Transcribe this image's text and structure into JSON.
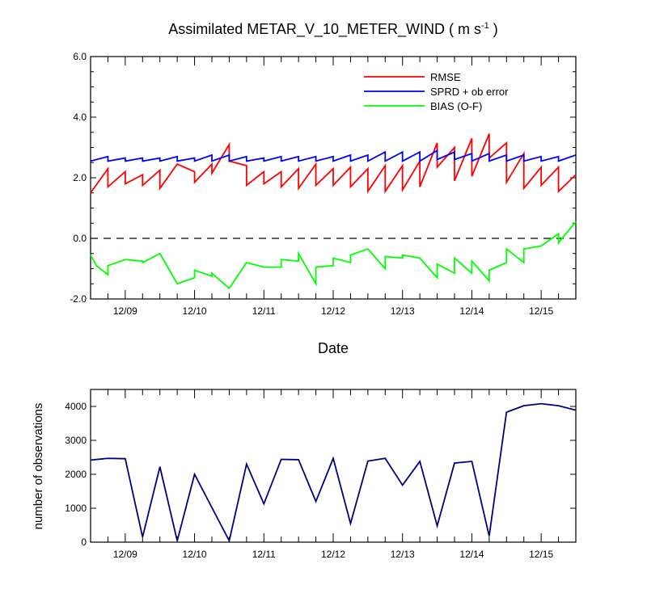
{
  "chart_data": [
    {
      "type": "line",
      "title": "Assimilated METAR_V_10_METER_WIND ( m s",
      "title_sup": "-1",
      "title_end": " )",
      "xlabel": "Date",
      "ylabel": "",
      "ylim": [
        -2.0,
        6.0
      ],
      "yticks": [
        "-2.0",
        "0.0",
        "2.0",
        "4.0",
        "6.0"
      ],
      "ytick_values": [
        -2,
        0,
        2,
        4,
        6
      ],
      "xlim": [
        0,
        42
      ],
      "x_tick_labels": [
        "12/09",
        "12/10",
        "12/11",
        "12/12",
        "12/13",
        "12/14",
        "12/15"
      ],
      "x_tick_positions": [
        3,
        9,
        15,
        21,
        27,
        33,
        39
      ],
      "reference_line": 0,
      "series": [
        {
          "name": "RMSE",
          "color": "#ff0000",
          "points": [
            [
              0,
              1.5
            ],
            [
              1.5,
              2.3
            ],
            [
              1.5,
              1.7
            ],
            [
              3,
              2.2
            ],
            [
              3,
              1.8
            ],
            [
              4.5,
              2.1
            ],
            [
              4.5,
              1.75
            ],
            [
              6,
              2.25
            ],
            [
              6,
              1.65
            ],
            [
              7.5,
              2.45
            ],
            [
              9,
              2.2
            ],
            [
              9,
              1.85
            ],
            [
              10.5,
              2.45
            ],
            [
              10.5,
              2.15
            ],
            [
              12,
              3.1
            ],
            [
              12,
              2.55
            ],
            [
              13.5,
              2.4
            ],
            [
              13.5,
              1.75
            ],
            [
              15,
              2.2
            ],
            [
              15,
              1.8
            ],
            [
              16.5,
              2.2
            ],
            [
              16.5,
              1.7
            ],
            [
              18,
              2.3
            ],
            [
              18,
              1.65
            ],
            [
              19.5,
              2.45
            ],
            [
              19.5,
              1.75
            ],
            [
              21,
              2.3
            ],
            [
              21,
              1.75
            ],
            [
              22.5,
              2.35
            ],
            [
              22.5,
              1.7
            ],
            [
              24,
              2.3
            ],
            [
              24,
              1.55
            ],
            [
              25.5,
              2.4
            ],
            [
              25.5,
              1.55
            ],
            [
              27,
              2.4
            ],
            [
              27,
              1.6
            ],
            [
              28.5,
              2.55
            ],
            [
              28.5,
              1.7
            ],
            [
              30,
              3.15
            ],
            [
              30,
              2.35
            ],
            [
              31.5,
              3.0
            ],
            [
              31.5,
              1.9
            ],
            [
              33,
              3.3
            ],
            [
              33,
              2.05
            ],
            [
              34.5,
              3.45
            ],
            [
              34.5,
              2.65
            ],
            [
              36,
              3.15
            ],
            [
              36,
              1.85
            ],
            [
              37.5,
              2.8
            ],
            [
              37.5,
              1.65
            ],
            [
              39,
              2.35
            ],
            [
              39,
              1.75
            ],
            [
              40.5,
              2.35
            ],
            [
              40.5,
              1.55
            ],
            [
              42,
              2.1
            ]
          ]
        },
        {
          "name": "SPRD + ob error",
          "color": "#0000ff",
          "points": [
            [
              0,
              2.55
            ],
            [
              1.5,
              2.7
            ],
            [
              1.5,
              2.55
            ],
            [
              3,
              2.65
            ],
            [
              3,
              2.55
            ],
            [
              4.5,
              2.65
            ],
            [
              4.5,
              2.55
            ],
            [
              6,
              2.65
            ],
            [
              6,
              2.55
            ],
            [
              7.5,
              2.7
            ],
            [
              7.5,
              2.55
            ],
            [
              9,
              2.65
            ],
            [
              9,
              2.55
            ],
            [
              10.5,
              2.75
            ],
            [
              10.5,
              2.55
            ],
            [
              12,
              2.75
            ],
            [
              12,
              2.55
            ],
            [
              13.5,
              2.7
            ],
            [
              13.5,
              2.55
            ],
            [
              15,
              2.65
            ],
            [
              15,
              2.55
            ],
            [
              16.5,
              2.7
            ],
            [
              16.5,
              2.55
            ],
            [
              18,
              2.7
            ],
            [
              18,
              2.55
            ],
            [
              19.5,
              2.7
            ],
            [
              19.5,
              2.55
            ],
            [
              21,
              2.7
            ],
            [
              21,
              2.55
            ],
            [
              22.5,
              2.75
            ],
            [
              22.5,
              2.55
            ],
            [
              24,
              2.75
            ],
            [
              24,
              2.55
            ],
            [
              25.5,
              2.85
            ],
            [
              25.5,
              2.55
            ],
            [
              27,
              2.85
            ],
            [
              27,
              2.55
            ],
            [
              28.5,
              2.85
            ],
            [
              28.5,
              2.55
            ],
            [
              30,
              2.9
            ],
            [
              30,
              2.6
            ],
            [
              31.5,
              2.85
            ],
            [
              31.5,
              2.6
            ],
            [
              33,
              2.8
            ],
            [
              33,
              2.55
            ],
            [
              34.5,
              2.8
            ],
            [
              34.5,
              2.55
            ],
            [
              36,
              2.75
            ],
            [
              36,
              2.55
            ],
            [
              37.5,
              2.75
            ],
            [
              37.5,
              2.55
            ],
            [
              39,
              2.7
            ],
            [
              39,
              2.55
            ],
            [
              40.5,
              2.7
            ],
            [
              40.5,
              2.55
            ],
            [
              42,
              2.75
            ]
          ]
        },
        {
          "name": "BIAS (O-F)",
          "color": "#00ff00",
          "points": [
            [
              0,
              -0.55
            ],
            [
              0.5,
              -0.9
            ],
            [
              1.5,
              -1.2
            ],
            [
              1.5,
              -0.9
            ],
            [
              3,
              -0.7
            ],
            [
              4.5,
              -0.75
            ],
            [
              4.5,
              -0.8
            ],
            [
              6,
              -0.5
            ],
            [
              7.5,
              -1.5
            ],
            [
              9,
              -1.3
            ],
            [
              9,
              -1.05
            ],
            [
              10.5,
              -1.25
            ],
            [
              10.5,
              -1.15
            ],
            [
              12,
              -1.65
            ],
            [
              13.5,
              -0.8
            ],
            [
              15,
              -0.95
            ],
            [
              16.5,
              -0.95
            ],
            [
              16.5,
              -0.7
            ],
            [
              18,
              -0.75
            ],
            [
              18,
              -0.5
            ],
            [
              19.5,
              -1.5
            ],
            [
              19.5,
              -0.95
            ],
            [
              21,
              -0.9
            ],
            [
              21,
              -0.65
            ],
            [
              22.5,
              -0.8
            ],
            [
              22.5,
              -0.55
            ],
            [
              24,
              -0.35
            ],
            [
              25.5,
              -1.0
            ],
            [
              25.5,
              -0.6
            ],
            [
              27,
              -0.65
            ],
            [
              27,
              -0.55
            ],
            [
              28.5,
              -0.65
            ],
            [
              30,
              -1.3
            ],
            [
              30,
              -0.85
            ],
            [
              31.5,
              -1.15
            ],
            [
              31.5,
              -0.65
            ],
            [
              33,
              -1.15
            ],
            [
              33,
              -0.75
            ],
            [
              34.5,
              -1.4
            ],
            [
              34.5,
              -1.05
            ],
            [
              36,
              -0.8
            ],
            [
              36,
              -0.35
            ],
            [
              37.5,
              -0.8
            ],
            [
              37.5,
              -0.35
            ],
            [
              39,
              -0.25
            ],
            [
              40.5,
              0.15
            ],
            [
              40.5,
              -0.15
            ],
            [
              42,
              0.55
            ]
          ]
        }
      ],
      "legend": [
        "RMSE",
        "SPRD + ob error",
        "BIAS (O-F)"
      ],
      "legend_placement": "top-right"
    },
    {
      "type": "line",
      "title": "",
      "xlabel": "",
      "ylabel": "number of observations",
      "ylim": [
        0,
        4500
      ],
      "yticks": [
        "0",
        "1000",
        "2000",
        "3000",
        "4000"
      ],
      "ytick_values": [
        0,
        1000,
        2000,
        3000,
        4000
      ],
      "xlim": [
        0,
        42
      ],
      "x_tick_labels": [
        "12/09",
        "12/10",
        "12/11",
        "12/12",
        "12/13",
        "12/14",
        "12/15"
      ],
      "x_tick_positions": [
        3,
        9,
        15,
        21,
        27,
        33,
        39
      ],
      "series": [
        {
          "name": "number of observations",
          "color": "#000080",
          "points": [
            [
              0,
              2420
            ],
            [
              1.5,
              2470
            ],
            [
              3,
              2460
            ],
            [
              4.5,
              150
            ],
            [
              6,
              2220
            ],
            [
              7.5,
              40
            ],
            [
              9,
              2000
            ],
            [
              12,
              40
            ],
            [
              13.5,
              2300
            ],
            [
              15,
              1130
            ],
            [
              16.5,
              2440
            ],
            [
              18,
              2430
            ],
            [
              19.5,
              1200
            ],
            [
              21,
              2470
            ],
            [
              22.5,
              550
            ],
            [
              24,
              2390
            ],
            [
              25.5,
              2470
            ],
            [
              27,
              1680
            ],
            [
              28.5,
              2380
            ],
            [
              30,
              480
            ],
            [
              31.5,
              2330
            ],
            [
              33,
              2380
            ],
            [
              34.5,
              180
            ],
            [
              36,
              3830
            ],
            [
              37.5,
              4020
            ],
            [
              39,
              4080
            ],
            [
              40.5,
              4020
            ],
            [
              42,
              3890
            ]
          ]
        }
      ]
    }
  ]
}
